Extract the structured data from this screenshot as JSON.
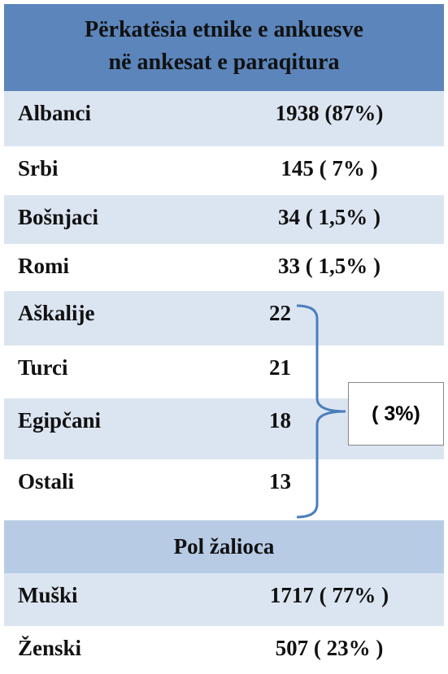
{
  "header": {
    "title_lines": [
      "Përkatësia etnike e ankuesve",
      "në ankesat e paraqitura"
    ]
  },
  "ethnicity_rows": [
    {
      "label": "Albanci",
      "value": "1938 (87%)"
    },
    {
      "label": "Srbi",
      "value": "145 ( 7% )"
    },
    {
      "label": "Bošnjaci",
      "value": "34 ( 1,5% )"
    },
    {
      "label": "Romi",
      "value": "33 ( 1,5% )"
    }
  ],
  "grouped_rows": [
    {
      "label": "Aškalije",
      "value": "22"
    },
    {
      "label": "Turci",
      "value": "21"
    },
    {
      "label": "Egipčani",
      "value": "18"
    },
    {
      "label": "Ostali",
      "value": "13"
    }
  ],
  "group_note": "( 3%)",
  "section": {
    "title": "Pol  žalioca"
  },
  "gender_rows": [
    {
      "label": "Muški",
      "value": "1717 ( 77% )"
    },
    {
      "label": "Ženski",
      "value": "507 ( 23% )"
    }
  ]
}
